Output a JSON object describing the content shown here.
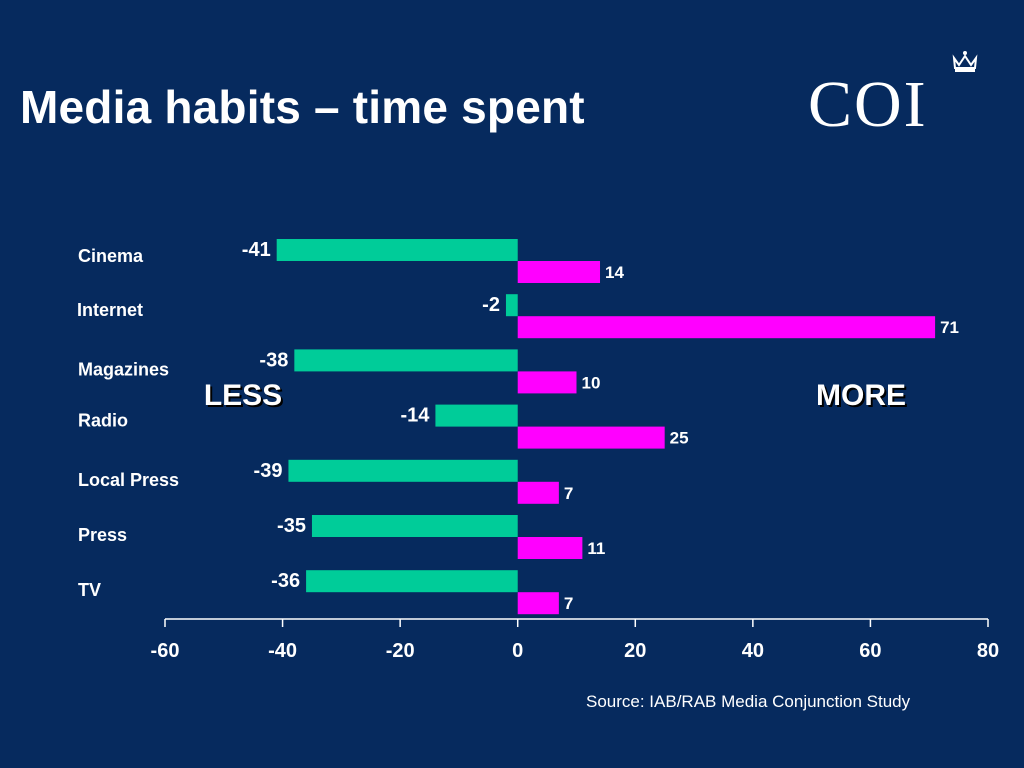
{
  "title": "Media habits – time spent",
  "logo": {
    "text": "COI",
    "icon": "crown-icon"
  },
  "source": "Source: IAB/RAB Media Conjunction Study",
  "colors": {
    "background": "#062a5e",
    "less": "#00cc99",
    "more": "#ff00ff"
  },
  "chart_data": {
    "type": "bar",
    "orientation": "horizontal",
    "categories": [
      "Cinema",
      "Internet",
      "Magazines",
      "Radio",
      "Local Press",
      "Press",
      "TV"
    ],
    "series": [
      {
        "values": [
          -41,
          -2,
          -38,
          -14,
          -39,
          -35,
          -36
        ],
        "color": "#00cc99"
      },
      {
        "values": [
          14,
          71,
          10,
          25,
          7,
          11,
          7
        ],
        "color": "#ff00ff"
      }
    ],
    "xlim": [
      -60,
      80
    ],
    "xticks": [
      -60,
      -40,
      -20,
      0,
      20,
      40,
      60,
      80
    ],
    "annotations": {
      "left": "LESS",
      "right": "MORE"
    },
    "grid": false
  }
}
